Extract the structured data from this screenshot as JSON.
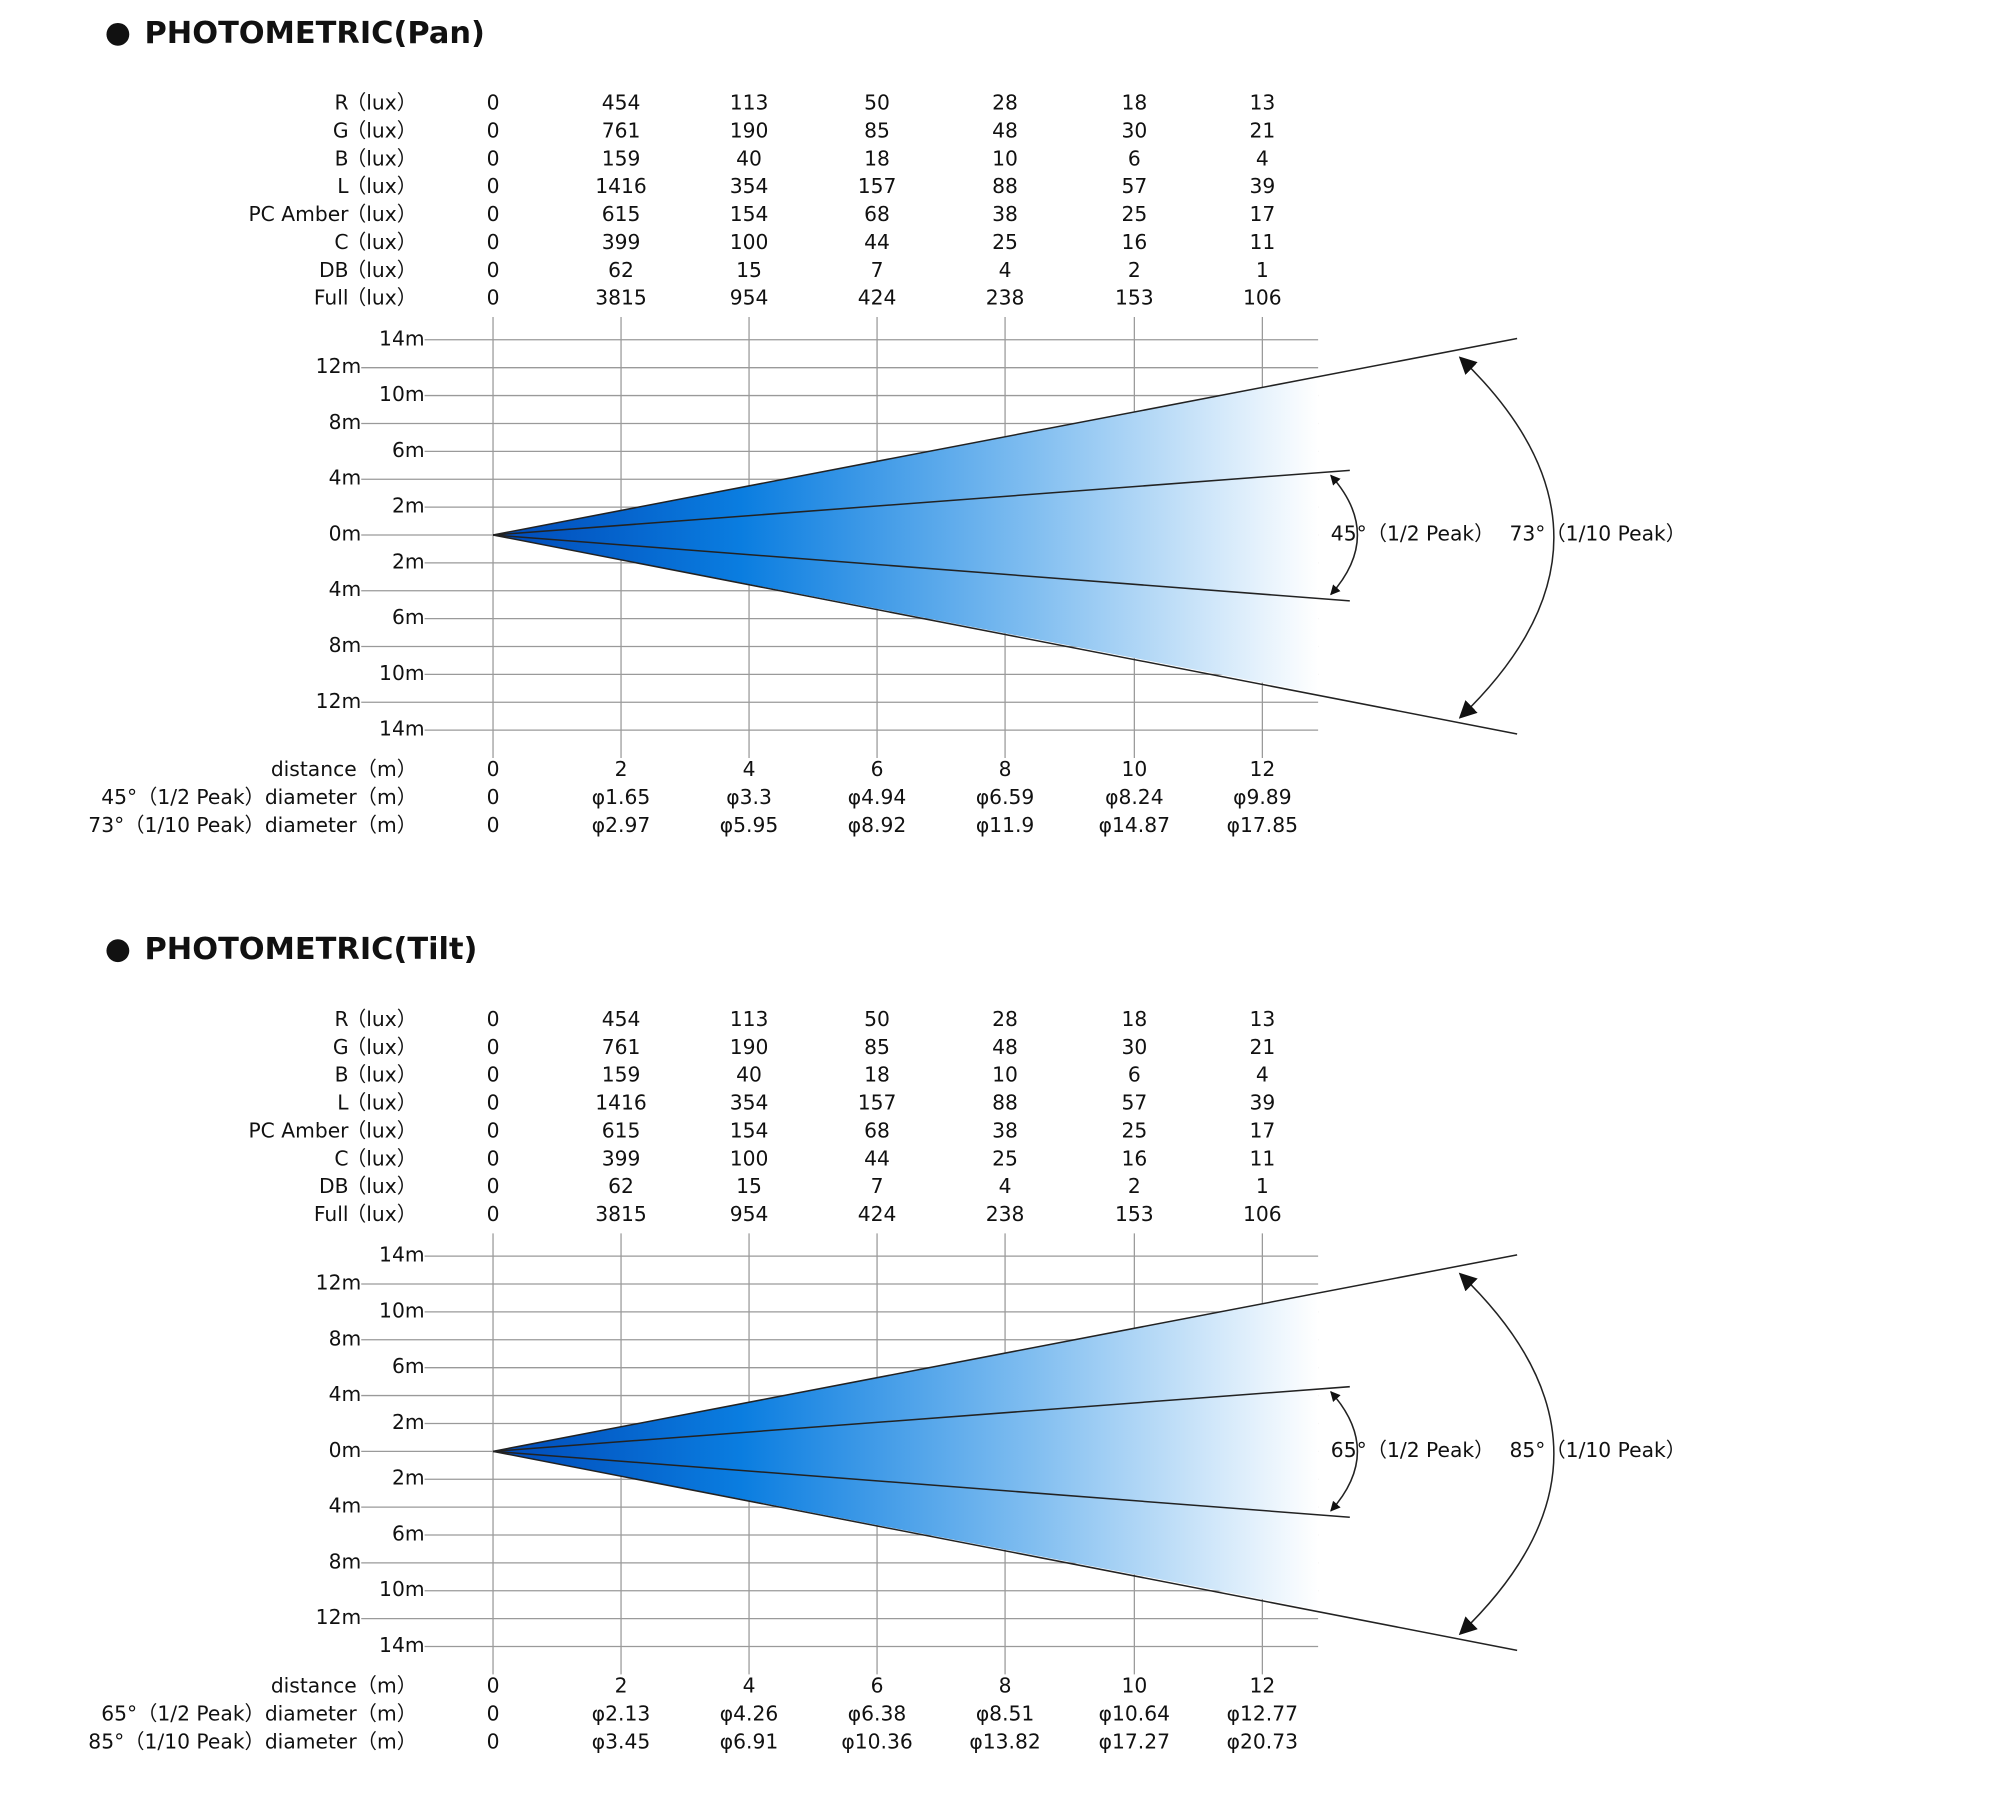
{
  "sections": [
    {
      "title": "PHOTOMETRIC(Pan)",
      "lux_rows": [
        {
          "label": "R",
          "unit": "（lux）",
          "values": [
            0,
            454,
            113,
            50,
            28,
            18,
            13
          ]
        },
        {
          "label": "G",
          "unit": "（lux）",
          "values": [
            0,
            761,
            190,
            85,
            48,
            30,
            21
          ]
        },
        {
          "label": "B",
          "unit": "（lux）",
          "values": [
            0,
            159,
            40,
            18,
            10,
            6,
            4
          ]
        },
        {
          "label": "L",
          "unit": "（lux）",
          "values": [
            0,
            1416,
            354,
            157,
            88,
            57,
            39
          ]
        },
        {
          "label": "PC Amber",
          "unit": "（lux）",
          "values": [
            0,
            615,
            154,
            68,
            38,
            25,
            17
          ]
        },
        {
          "label": "C",
          "unit": "（lux）",
          "values": [
            0,
            399,
            100,
            44,
            25,
            16,
            11
          ]
        },
        {
          "label": "DB",
          "unit": "（lux）",
          "values": [
            0,
            62,
            15,
            7,
            4,
            2,
            1
          ]
        },
        {
          "label": "Full",
          "unit": "（lux）",
          "values": [
            0,
            3815,
            954,
            424,
            238,
            153,
            106
          ]
        }
      ],
      "axis_labels": [
        "14m",
        "12m",
        "10m",
        "8m",
        "6m",
        "4m",
        "2m",
        "0m",
        "2m",
        "4m",
        "6m",
        "8m",
        "10m",
        "12m",
        "14m"
      ],
      "bottom_rows": [
        {
          "label": "distance（m）",
          "values": [
            0,
            2,
            4,
            6,
            8,
            10,
            12
          ]
        },
        {
          "label": "45°（1/2 Peak）diameter（m）",
          "values": [
            0,
            "φ1.65",
            "φ3.3",
            "φ4.94",
            "φ6.59",
            "φ8.24",
            "φ9.89"
          ]
        },
        {
          "label": "73°（1/10 Peak）diameter（m）",
          "values": [
            0,
            "φ2.97",
            "φ5.95",
            "φ8.92",
            "φ11.9",
            "φ14.87",
            "φ17.85"
          ]
        }
      ],
      "half_peak_label": "45°（1/2 Peak）",
      "tenth_peak_label": "73°（1/10 Peak）"
    },
    {
      "title": "PHOTOMETRIC(Tilt)",
      "lux_rows": [
        {
          "label": "R",
          "unit": "（lux）",
          "values": [
            0,
            454,
            113,
            50,
            28,
            18,
            13
          ]
        },
        {
          "label": "G",
          "unit": "（lux）",
          "values": [
            0,
            761,
            190,
            85,
            48,
            30,
            21
          ]
        },
        {
          "label": "B",
          "unit": "（lux）",
          "values": [
            0,
            159,
            40,
            18,
            10,
            6,
            4
          ]
        },
        {
          "label": "L",
          "unit": "（lux）",
          "values": [
            0,
            1416,
            354,
            157,
            88,
            57,
            39
          ]
        },
        {
          "label": "PC Amber",
          "unit": "（lux）",
          "values": [
            0,
            615,
            154,
            68,
            38,
            25,
            17
          ]
        },
        {
          "label": "C",
          "unit": "（lux）",
          "values": [
            0,
            399,
            100,
            44,
            25,
            16,
            11
          ]
        },
        {
          "label": "DB",
          "unit": "（lux）",
          "values": [
            0,
            62,
            15,
            7,
            4,
            2,
            1
          ]
        },
        {
          "label": "Full",
          "unit": "（lux）",
          "values": [
            0,
            3815,
            954,
            424,
            238,
            153,
            106
          ]
        }
      ],
      "axis_labels": [
        "14m",
        "12m",
        "10m",
        "8m",
        "6m",
        "4m",
        "2m",
        "0m",
        "2m",
        "4m",
        "6m",
        "8m",
        "10m",
        "12m",
        "14m"
      ],
      "bottom_rows": [
        {
          "label": "distance（m）",
          "values": [
            0,
            2,
            4,
            6,
            8,
            10,
            12
          ]
        },
        {
          "label": "65°（1/2 Peak）diameter（m）",
          "values": [
            0,
            "φ2.13",
            "φ4.26",
            "φ6.38",
            "φ8.51",
            "φ10.64",
            "φ12.77"
          ]
        },
        {
          "label": "85°（1/10 Peak）diameter（m）",
          "values": [
            0,
            "φ3.45",
            "φ6.91",
            "φ10.36",
            "φ13.82",
            "φ17.27",
            "φ20.73"
          ]
        }
      ],
      "half_peak_label": "65°（1/2 Peak）",
      "tenth_peak_label": "85°（1/10 Peak）"
    }
  ]
}
